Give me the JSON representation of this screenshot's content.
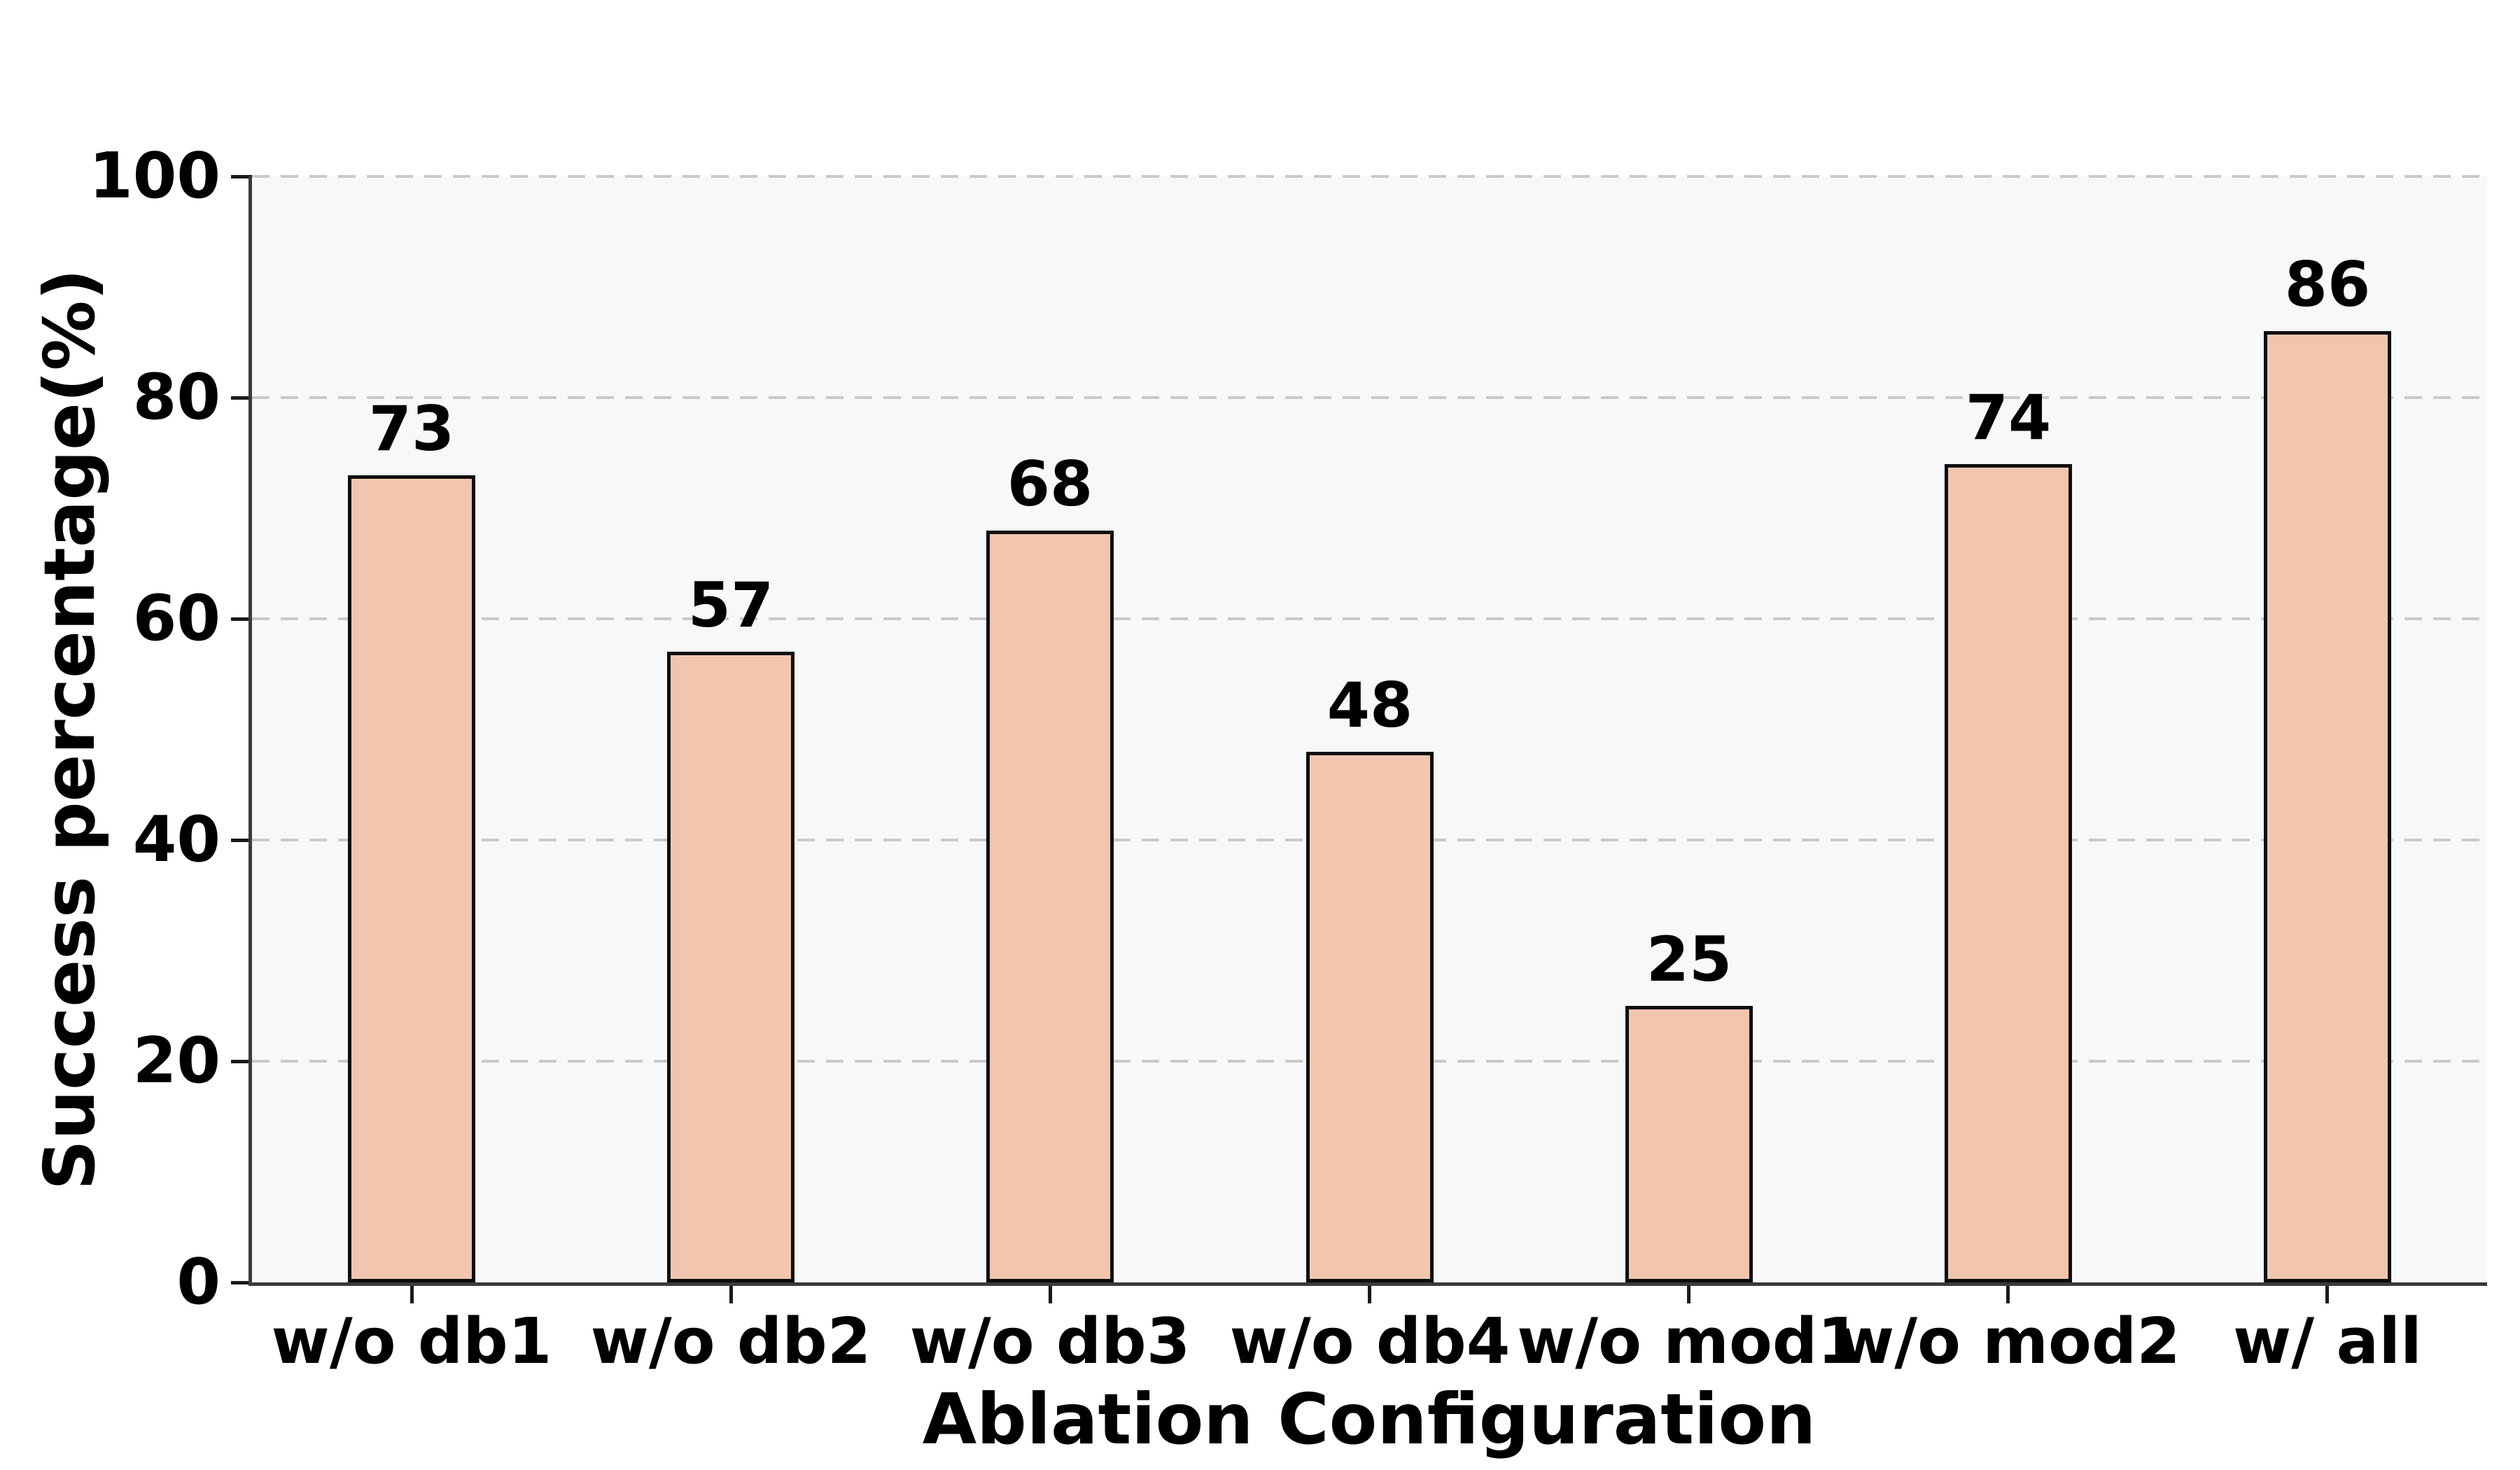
{
  "chart_data": {
    "type": "bar",
    "title": "",
    "categories": [
      "w/o db1",
      "w/o db2",
      "w/o db3",
      "w/o db4",
      "w/o mod1",
      "w/o mod2",
      "w/ all"
    ],
    "values": [
      73,
      57,
      68,
      48,
      25,
      74,
      86
    ],
    "xlabel": "Ablation Configuration",
    "ylabel": "Success percentage(%)",
    "ylim": [
      0,
      100
    ],
    "yticks": [
      0,
      20,
      40,
      60,
      80,
      100
    ],
    "grid": "horizontal-dashed",
    "legend": "none",
    "bar_width_ratio": 0.4,
    "colors": {
      "bar_fill": "#f2c6ae",
      "bar_edge": "#0d0d0d",
      "plot_background": "#f7f8fa",
      "figure_background": "#ffffff",
      "gridline": "#c9c9c9",
      "spine": "#3a3a3a",
      "tick": "#1a1a1a",
      "text": "#000000"
    }
  }
}
